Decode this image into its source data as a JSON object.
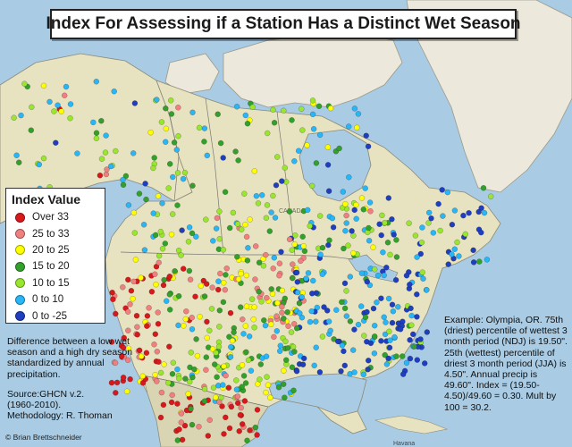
{
  "title": "Index For Assessing if a Station Has a Distinct Wet Season",
  "legend": {
    "title": "Index Value",
    "items": [
      {
        "label": "Over 33",
        "color": "#d7191c"
      },
      {
        "label": "25 to 33",
        "color": "#f08080"
      },
      {
        "label": "20 to 25",
        "color": "#ffff00"
      },
      {
        "label": "15 to 20",
        "color": "#33a02c"
      },
      {
        "label": "10 to 15",
        "color": "#99e62e"
      },
      {
        "label": "0 to 10",
        "color": "#29b6f6"
      },
      {
        "label": "0 to -25",
        "color": "#1f3fbf"
      }
    ]
  },
  "map_labels": {
    "canada": "CANADA",
    "havana": "Havana"
  },
  "notes": {
    "left_description": "Difference between a low wet season and a high dry season standardized by annual precipitation.",
    "source": "Source:GHCN v.2.",
    "years": "(1960-2010).",
    "methodology": "Methodology: R. Thoman",
    "example": "Example: Olympia, OR. 75th (driest) percentile of wettest 3 month period (NDJ) is 19.50\". 25th (wettest) percentile of driest 3 month period (JJA) is 4.50\". Annual precip is 49.60\". Index = (19.50-4.50)/49.60 = 0.30. Mult by 100 = 30.2."
  },
  "credit": "© Brian Brettschneider",
  "colors": {
    "ocean": "#a9cbe3",
    "land": "#e7e2bf",
    "mexico": "#d9d5b3"
  }
}
